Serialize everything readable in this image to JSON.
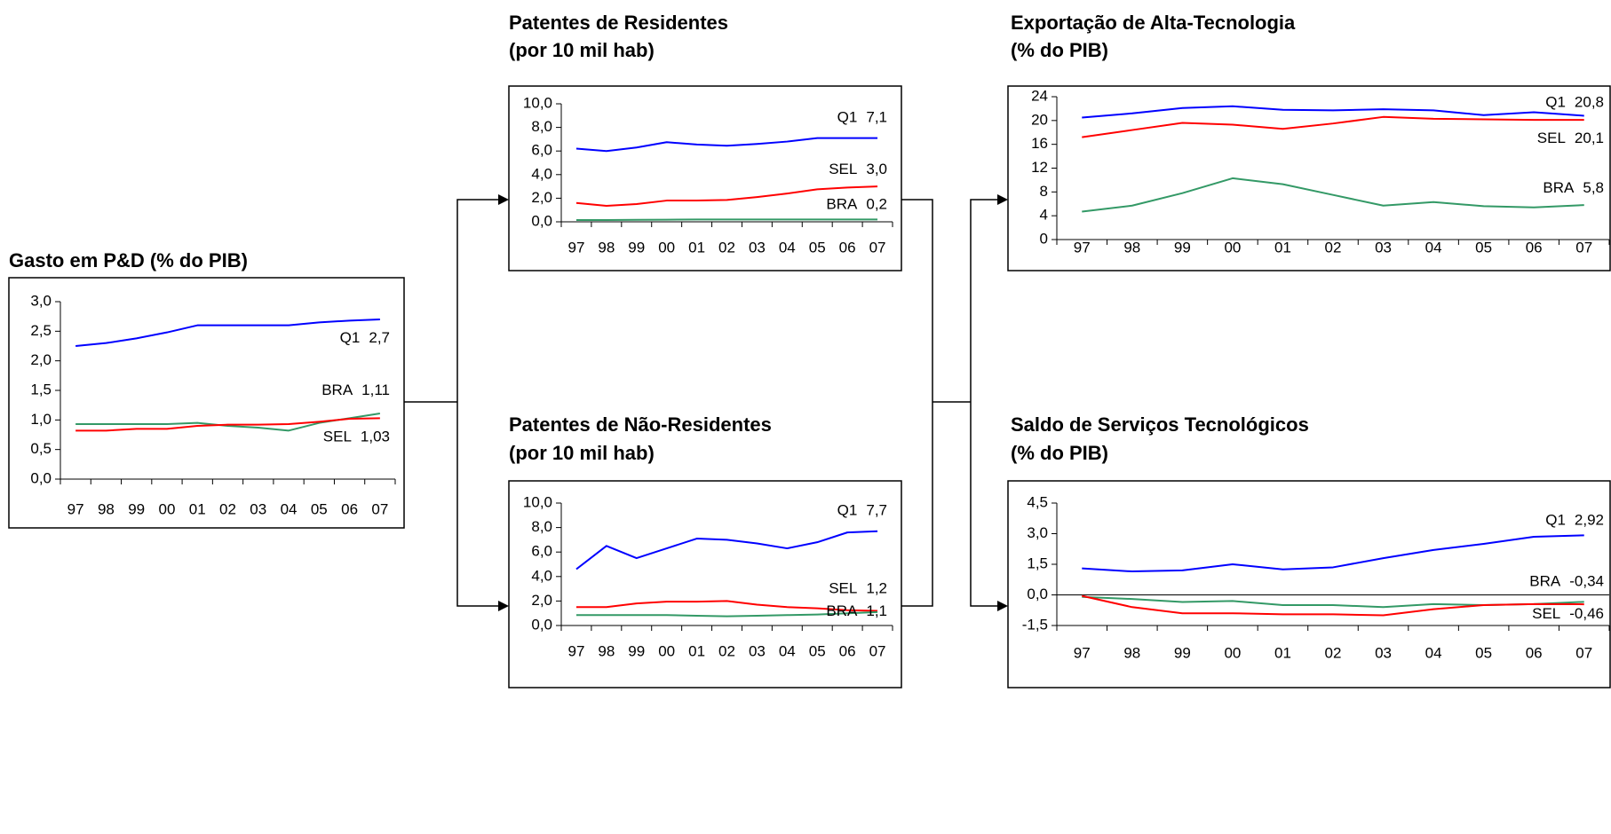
{
  "chart_data": [
    {
      "type": "line",
      "title": "Gasto em P&D (% do PIB)",
      "categories": [
        "97",
        "98",
        "99",
        "00",
        "01",
        "02",
        "03",
        "04",
        "05",
        "06",
        "07"
      ],
      "ylim": [
        0,
        3
      ],
      "yticks": [
        {
          "value": 0,
          "label": "0,0"
        },
        {
          "value": 0.5,
          "label": "0,5"
        },
        {
          "value": 1,
          "label": "1,0"
        },
        {
          "value": 1.5,
          "label": "1,5"
        },
        {
          "value": 2,
          "label": "2,0"
        },
        {
          "value": 2.5,
          "label": "2,5"
        },
        {
          "value": 3,
          "label": "3,0"
        }
      ],
      "series": [
        {
          "name": "Q1",
          "color": "#0000ff",
          "values": [
            2.25,
            2.3,
            2.38,
            2.48,
            2.6,
            2.6,
            2.6,
            2.6,
            2.65,
            2.68,
            2.7
          ],
          "value_labels": [
            null,
            null,
            null,
            null,
            null,
            null,
            null,
            null,
            null,
            null,
            "2,7"
          ]
        },
        {
          "name": "BRA",
          "color": "#339966",
          "values": [
            0.93,
            0.93,
            0.93,
            0.93,
            0.95,
            0.9,
            0.87,
            0.82,
            0.95,
            1.03,
            1.11
          ],
          "value_labels": [
            null,
            null,
            null,
            null,
            null,
            null,
            null,
            null,
            null,
            null,
            "1,11"
          ]
        },
        {
          "name": "SEL",
          "color": "#ff0000",
          "values": [
            0.82,
            0.82,
            0.85,
            0.85,
            0.9,
            0.92,
            0.92,
            0.93,
            0.97,
            1.02,
            1.03
          ],
          "value_labels": [
            null,
            null,
            null,
            null,
            null,
            null,
            null,
            null,
            null,
            null,
            "1,03"
          ]
        }
      ]
    },
    {
      "type": "line",
      "title": "Patentes de Residentes",
      "subtitle": "(por 10 mil hab)",
      "categories": [
        "97",
        "98",
        "99",
        "00",
        "01",
        "02",
        "03",
        "04",
        "05",
        "06",
        "07"
      ],
      "ylim": [
        0,
        10
      ],
      "yticks": [
        {
          "value": 0,
          "label": "0,0"
        },
        {
          "value": 2,
          "label": "2,0"
        },
        {
          "value": 4,
          "label": "4,0"
        },
        {
          "value": 6,
          "label": "6,0"
        },
        {
          "value": 8,
          "label": "8,0"
        },
        {
          "value": 10,
          "label": "10,0"
        }
      ],
      "series": [
        {
          "name": "Q1",
          "color": "#0000ff",
          "values": [
            6.2,
            6.0,
            6.3,
            6.75,
            6.55,
            6.45,
            6.6,
            6.8,
            7.1,
            7.1,
            7.1
          ],
          "value_labels": [
            null,
            null,
            null,
            null,
            null,
            null,
            null,
            null,
            null,
            null,
            "7,1"
          ]
        },
        {
          "name": "SEL",
          "color": "#ff0000",
          "values": [
            1.6,
            1.35,
            1.5,
            1.8,
            1.8,
            1.85,
            2.1,
            2.4,
            2.75,
            2.9,
            3.0
          ],
          "value_labels": [
            null,
            null,
            null,
            null,
            null,
            null,
            null,
            null,
            null,
            null,
            "3,0"
          ]
        },
        {
          "name": "BRA",
          "color": "#339966",
          "values": [
            0.15,
            0.15,
            0.17,
            0.18,
            0.2,
            0.2,
            0.2,
            0.2,
            0.2,
            0.2,
            0.2
          ],
          "value_labels": [
            null,
            null,
            null,
            null,
            null,
            null,
            null,
            null,
            null,
            null,
            "0,2"
          ]
        }
      ]
    },
    {
      "type": "line",
      "title": "Patentes de Não-Residentes",
      "subtitle": "(por 10 mil hab)",
      "categories": [
        "97",
        "98",
        "99",
        "00",
        "01",
        "02",
        "03",
        "04",
        "05",
        "06",
        "07"
      ],
      "ylim": [
        0,
        10
      ],
      "yticks": [
        {
          "value": 0,
          "label": "0,0"
        },
        {
          "value": 2,
          "label": "2,0"
        },
        {
          "value": 4,
          "label": "4,0"
        },
        {
          "value": 6,
          "label": "6,0"
        },
        {
          "value": 8,
          "label": "8,0"
        },
        {
          "value": 10,
          "label": "10,0"
        }
      ],
      "series": [
        {
          "name": "Q1",
          "color": "#0000ff",
          "values": [
            4.6,
            6.5,
            5.5,
            6.3,
            7.1,
            7.0,
            6.7,
            6.3,
            6.8,
            7.6,
            7.7
          ],
          "value_labels": [
            null,
            null,
            null,
            null,
            null,
            null,
            null,
            null,
            null,
            null,
            "7,7"
          ]
        },
        {
          "name": "SEL",
          "color": "#ff0000",
          "values": [
            1.5,
            1.5,
            1.8,
            1.95,
            1.95,
            2.0,
            1.7,
            1.5,
            1.4,
            1.25,
            1.2
          ],
          "value_labels": [
            null,
            null,
            null,
            null,
            null,
            null,
            null,
            null,
            null,
            null,
            "1,2"
          ]
        },
        {
          "name": "BRA",
          "color": "#339966",
          "values": [
            0.85,
            0.85,
            0.85,
            0.85,
            0.8,
            0.75,
            0.8,
            0.85,
            0.9,
            1.0,
            1.1
          ],
          "value_labels": [
            null,
            null,
            null,
            null,
            null,
            null,
            null,
            null,
            null,
            null,
            "1,1"
          ]
        }
      ]
    },
    {
      "type": "line",
      "title": "Exportação de Alta-Tecnologia",
      "subtitle": "(% do PIB)",
      "categories": [
        "97",
        "98",
        "99",
        "00",
        "01",
        "02",
        "03",
        "04",
        "05",
        "06",
        "07"
      ],
      "ylim": [
        0,
        24
      ],
      "yticks": [
        0,
        4,
        8,
        12,
        16,
        20,
        24
      ],
      "series": [
        {
          "name": "Q1",
          "color": "#0000ff",
          "values": [
            20.5,
            21.2,
            22.1,
            22.4,
            21.8,
            21.7,
            21.9,
            21.7,
            20.9,
            21.4,
            20.8
          ],
          "value_labels": [
            null,
            null,
            null,
            null,
            null,
            null,
            null,
            null,
            null,
            null,
            "20,8"
          ]
        },
        {
          "name": "SEL",
          "color": "#ff0000",
          "values": [
            17.2,
            18.4,
            19.6,
            19.3,
            18.6,
            19.5,
            20.6,
            20.3,
            20.2,
            20.1,
            20.1
          ],
          "value_labels": [
            null,
            null,
            null,
            null,
            null,
            null,
            null,
            null,
            null,
            null,
            "20,1"
          ]
        },
        {
          "name": "BRA",
          "color": "#339966",
          "values": [
            4.7,
            5.7,
            7.8,
            10.3,
            9.3,
            7.5,
            5.7,
            6.3,
            5.6,
            5.4,
            5.8
          ],
          "value_labels": [
            null,
            null,
            null,
            null,
            null,
            null,
            null,
            null,
            null,
            null,
            "5,8"
          ]
        }
      ]
    },
    {
      "type": "line",
      "title": "Saldo de Serviços Tecnológicos",
      "subtitle": "(% do PIB)",
      "categories": [
        "97",
        "98",
        "99",
        "00",
        "01",
        "02",
        "03",
        "04",
        "05",
        "06",
        "07"
      ],
      "ylim": [
        -1.5,
        4.5
      ],
      "yticks": [
        {
          "value": -1.5,
          "label": "-1,5"
        },
        {
          "value": 0,
          "label": "0,0"
        },
        {
          "value": 1.5,
          "label": "1,5"
        },
        {
          "value": 3,
          "label": "3,0"
        },
        {
          "value": 4.5,
          "label": "4,5"
        }
      ],
      "series": [
        {
          "name": "Q1",
          "color": "#0000ff",
          "values": [
            1.3,
            1.15,
            1.2,
            1.5,
            1.25,
            1.35,
            1.8,
            2.2,
            2.5,
            2.85,
            2.92
          ],
          "value_labels": [
            null,
            null,
            null,
            null,
            null,
            null,
            null,
            null,
            null,
            null,
            "2,92"
          ]
        },
        {
          "name": "BRA",
          "color": "#339966",
          "values": [
            -0.1,
            -0.2,
            -0.35,
            -0.3,
            -0.5,
            -0.5,
            -0.6,
            -0.45,
            -0.5,
            -0.45,
            -0.34
          ],
          "value_labels": [
            null,
            null,
            null,
            null,
            null,
            null,
            null,
            null,
            null,
            null,
            "-0,34"
          ]
        },
        {
          "name": "SEL",
          "color": "#ff0000",
          "values": [
            -0.05,
            -0.6,
            -0.9,
            -0.9,
            -0.95,
            -0.95,
            -1.0,
            -0.7,
            -0.5,
            -0.45,
            -0.46
          ],
          "value_labels": [
            null,
            null,
            null,
            null,
            null,
            null,
            null,
            null,
            null,
            null,
            "-0,46"
          ]
        }
      ]
    }
  ]
}
